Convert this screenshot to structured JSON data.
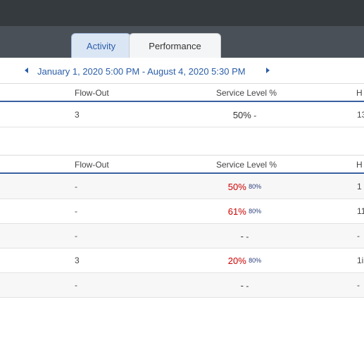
{
  "tabs": [
    {
      "label": "Activity"
    },
    {
      "label": "Performance"
    }
  ],
  "date_range": "January 1, 2020 5:00 PM - August 4, 2020 5:30 PM",
  "table1": {
    "headers": {
      "flow_out": "Flow-Out",
      "service_level": "Service Level %",
      "next": "H"
    },
    "rows": [
      {
        "flow_out": "3",
        "sl_value": "50%",
        "sl_target": "-",
        "next": "13"
      }
    ]
  },
  "table2": {
    "headers": {
      "flow_out": "Flow-Out",
      "service_level": "Service Level %",
      "next": "H"
    },
    "rows": [
      {
        "flow_out": "-",
        "sl_value": "50%",
        "sl_target": "80%",
        "next": "1"
      },
      {
        "flow_out": "-",
        "sl_value": "61%",
        "sl_target": "80%",
        "next": "11"
      },
      {
        "flow_out": "-",
        "sl_value": "-",
        "sl_target": "-",
        "next": "-"
      },
      {
        "flow_out": "3",
        "sl_value": "20%",
        "sl_target": "80%",
        "next": "1i"
      },
      {
        "flow_out": "-",
        "sl_value": "-",
        "sl_target": "-",
        "next": "-"
      }
    ]
  },
  "colors": {
    "accent": "#2b5ea8",
    "below_target": "#cc0000",
    "header_rule": "#3a5fa0"
  }
}
